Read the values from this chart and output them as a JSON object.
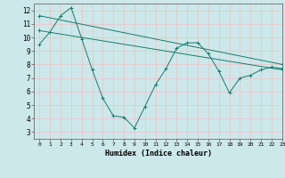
{
  "xlabel": "Humidex (Indice chaleur)",
  "xlim": [
    -0.5,
    23
  ],
  "ylim": [
    2.5,
    12.5
  ],
  "yticks": [
    3,
    4,
    5,
    6,
    7,
    8,
    9,
    10,
    11,
    12
  ],
  "xticks": [
    0,
    1,
    2,
    3,
    4,
    5,
    6,
    7,
    8,
    9,
    10,
    11,
    12,
    13,
    14,
    15,
    16,
    17,
    18,
    19,
    20,
    21,
    22,
    23
  ],
  "bg_color": "#cce8ea",
  "grid_color": "#b0d4d8",
  "line_color": "#1a7a6e",
  "line1": {
    "x": [
      0,
      1,
      2,
      3,
      4,
      5,
      6,
      7,
      8,
      9,
      10,
      11,
      12,
      13,
      14,
      15,
      16,
      17,
      18,
      19,
      20,
      21,
      22,
      23
    ],
    "y": [
      9.5,
      10.4,
      11.6,
      12.2,
      9.9,
      7.6,
      5.5,
      4.2,
      4.1,
      3.3,
      4.9,
      6.5,
      7.7,
      9.2,
      9.6,
      9.6,
      8.8,
      7.5,
      5.9,
      7.0,
      7.2,
      7.6,
      7.8,
      7.7
    ]
  },
  "line2": {
    "x": [
      0,
      23
    ],
    "y": [
      11.6,
      8.0
    ]
  },
  "line3": {
    "x": [
      0,
      23
    ],
    "y": [
      10.5,
      7.6
    ]
  }
}
